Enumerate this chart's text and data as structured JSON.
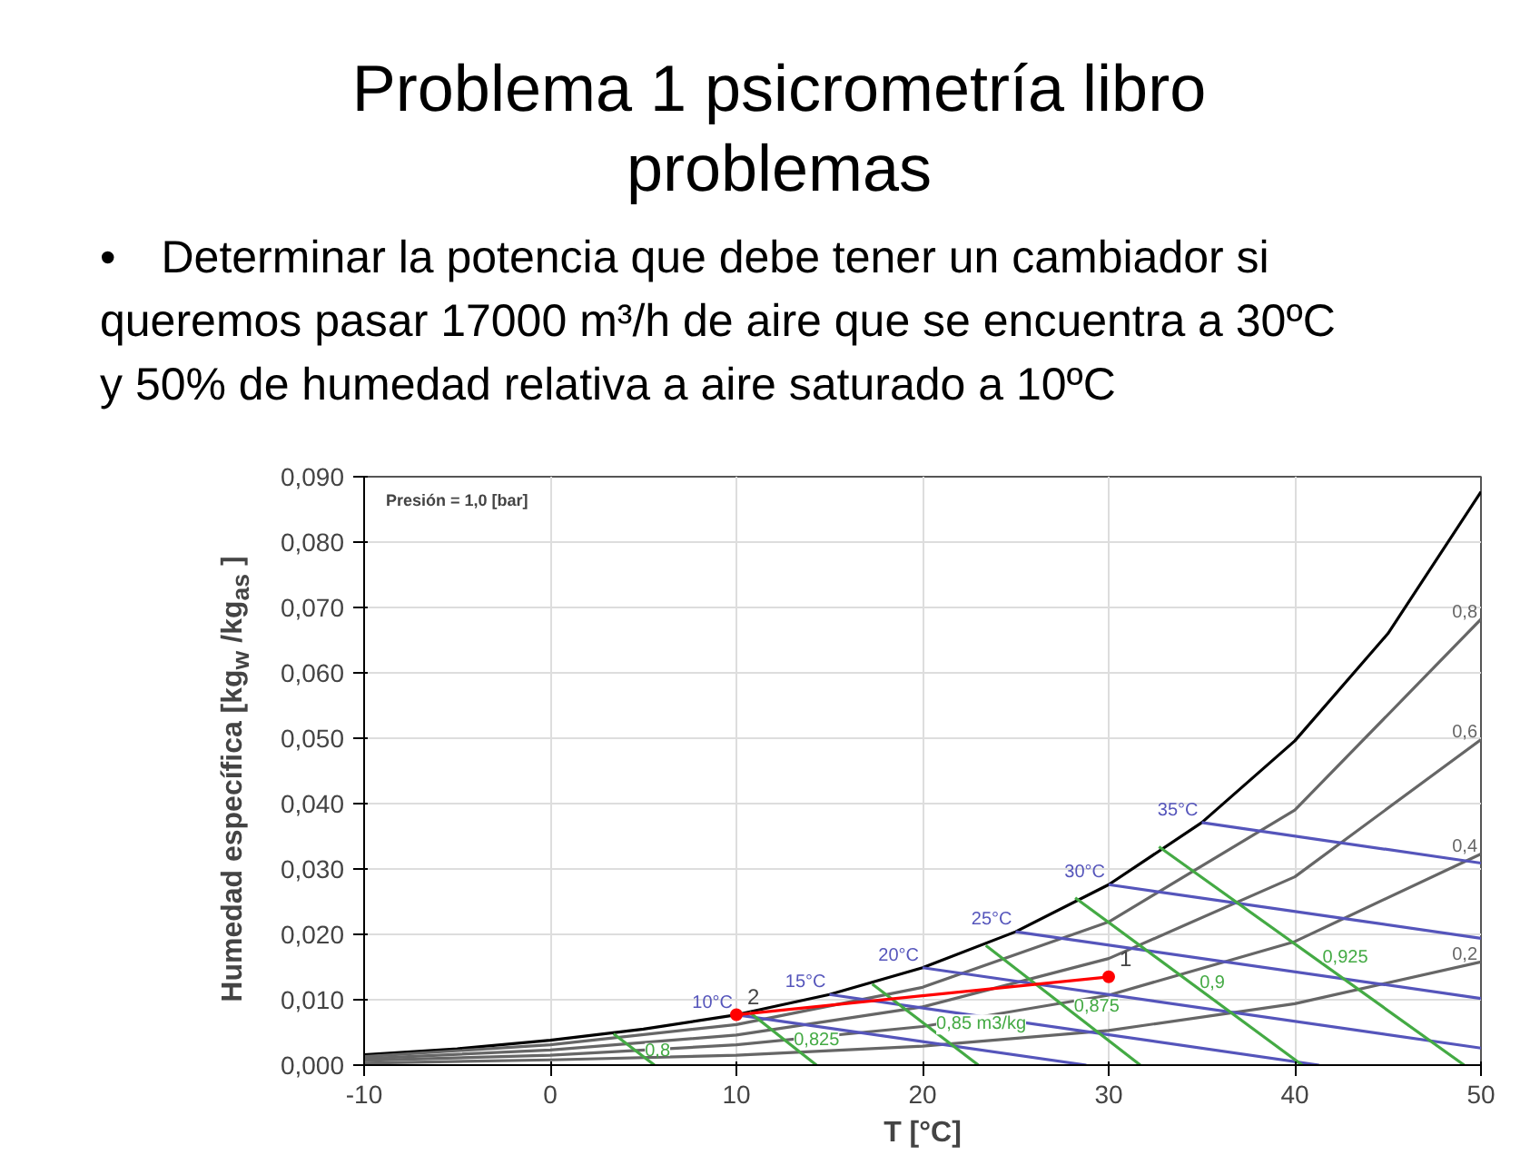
{
  "chart_data": {
    "type": "line",
    "title": "Problema 1 psicrometría libro problemas",
    "subtitle": "• Determinar la potencia que debe tener un cambiador si queremos pasar 17000 m³/h de aire que se encuentra a 30ºC y 50% de humedad relativa a aire saturado a 10ºC",
    "xlabel": "T [°C]",
    "ylabel": "Humedad específica [kg$_{w}$ /kg$_{as}$ ]",
    "xlim": [
      -10,
      50
    ],
    "xticks": [
      -10,
      0,
      10,
      20,
      30,
      40,
      50
    ],
    "ylim": [
      0,
      0.09
    ],
    "yticks": [
      {
        "value": 0,
        "label": "0,000"
      },
      {
        "value": 0.01,
        "label": "0,010"
      },
      {
        "value": 0.02,
        "label": "0,020"
      },
      {
        "value": 0.03,
        "label": "0,030"
      },
      {
        "value": 0.04,
        "label": "0,040"
      },
      {
        "value": 0.05,
        "label": "0,050"
      },
      {
        "value": 0.06,
        "label": "0,060"
      },
      {
        "value": 0.07,
        "label": "0,070"
      },
      {
        "value": 0.08,
        "label": "0,080"
      },
      {
        "value": 0.09,
        "label": "0,090"
      }
    ],
    "grid": true,
    "line_style": "solid",
    "series": [
      {
        "color": "#000000",
        "x": [
          -10,
          -5,
          0,
          5,
          10,
          15,
          20,
          25,
          30,
          35,
          40,
          45,
          50
        ],
        "values": [
          0.0016,
          0.0025,
          0.0038,
          0.0055,
          0.0077,
          0.0108,
          0.0149,
          0.0204,
          0.0276,
          0.0371,
          0.0496,
          0.066,
          0.0877
        ]
      },
      {
        "name": "0,8",
        "color": "#666666",
        "x": [
          50,
          40,
          30,
          20,
          10,
          0,
          -10
        ],
        "values": [
          0.0682,
          0.039,
          0.0219,
          0.0119,
          0.0062,
          0.0031,
          0.0013
        ]
      },
      {
        "name": "0,6",
        "color": "#666666",
        "x": [
          50,
          40,
          30,
          20,
          10,
          0,
          -10
        ],
        "values": [
          0.0498,
          0.0288,
          0.0163,
          0.0089,
          0.0046,
          0.0023,
          0.001
        ]
      },
      {
        "name": "0,4",
        "color": "#666666",
        "x": [
          50,
          40,
          30,
          20,
          10,
          0,
          -10
        ],
        "values": [
          0.0323,
          0.0189,
          0.0107,
          0.0059,
          0.0031,
          0.0015,
          0.0007
        ]
      },
      {
        "name": "0,2",
        "color": "#666666",
        "x": [
          50,
          40,
          30,
          20,
          10,
          0,
          -10
        ],
        "values": [
          0.0158,
          0.0094,
          0.0053,
          0.0029,
          0.0015,
          0.0008,
          0.0003
        ]
      },
      {
        "name": "10°C",
        "color": "#5555bb",
        "x": [
          10,
          28.8
        ],
        "values": [
          0.0077,
          0
        ]
      },
      {
        "name": "15°C",
        "color": "#5555bb",
        "x": [
          15,
          41.3
        ],
        "values": [
          0.0108,
          0
        ]
      },
      {
        "name": "20°C",
        "color": "#5555bb",
        "x": [
          20,
          50
        ],
        "values": [
          0.0149,
          0.0026
        ]
      },
      {
        "name": "25°C",
        "color": "#5555bb",
        "x": [
          25,
          50
        ],
        "values": [
          0.0204,
          0.0102
        ]
      },
      {
        "name": "30°C",
        "color": "#5555bb",
        "x": [
          30,
          50
        ],
        "values": [
          0.0276,
          0.0194
        ]
      },
      {
        "name": "35°C",
        "color": "#5555bb",
        "x": [
          35,
          50
        ],
        "values": [
          0.0371,
          0.0309
        ]
      },
      {
        "name": "0,8",
        "color": "#44aa44",
        "x": [
          3.4,
          5.6
        ],
        "values": [
          0.0048,
          0
        ]
      },
      {
        "name": "0,825",
        "color": "#44aa44",
        "x": [
          10.7,
          14.3
        ],
        "values": [
          0.0081,
          0
        ]
      },
      {
        "name": "0,85 m3/kg",
        "color": "#44aa44",
        "x": [
          17.3,
          23
        ],
        "values": [
          0.0124,
          0
        ]
      },
      {
        "name": "0,875",
        "color": "#44aa44",
        "x": [
          23.4,
          31.7
        ],
        "values": [
          0.0183,
          0
        ]
      },
      {
        "name": "0,9",
        "color": "#44aa44",
        "x": [
          28.2,
          40.4
        ],
        "values": [
          0.0256,
          0
        ]
      },
      {
        "name": "0,925",
        "color": "#44aa44",
        "x": [
          32.7,
          49.1
        ],
        "values": [
          0.0334,
          0
        ]
      },
      {
        "color": "#ff0000",
        "x": [
          10,
          30
        ],
        "values": [
          0.0077,
          0.0135
        ]
      },
      {
        "type": "scatter",
        "color": "#ff0000",
        "x": [
          10,
          30
        ],
        "values": [
          0.0077,
          0.0135
        ]
      }
    ],
    "annotations": [
      "Presión = 1,0 [bar]",
      {
        "text": "1",
        "x": 30,
        "y": 0.0135
      },
      {
        "text": "2",
        "x": 10,
        "y": 0.0077
      }
    ]
  }
}
